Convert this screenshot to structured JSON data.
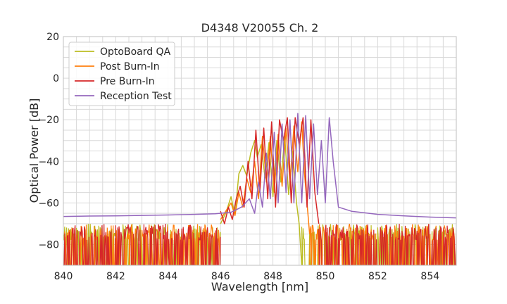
{
  "chart_data": {
    "type": "line",
    "title": "D4348 V20055 Ch. 2",
    "xlabel": "Wavelength [nm]",
    "ylabel": "Optical Power [dB]",
    "xlim": [
      840,
      855
    ],
    "ylim": [
      -90,
      20
    ],
    "xticks": [
      840,
      842,
      844,
      846,
      848,
      850,
      852,
      854
    ],
    "yticks": [
      20,
      0,
      -20,
      -40,
      -60,
      -80
    ],
    "xtick_labels": [
      "840",
      "842",
      "844",
      "846",
      "848",
      "850",
      "852",
      "854"
    ],
    "ytick_labels": [
      "20",
      "0",
      "−20",
      "−40",
      "−60",
      "−80"
    ],
    "grid": true,
    "legend_position": "top-left",
    "series": [
      {
        "name": "OptoBoard QA",
        "color": "#bcbd22",
        "noise_floor": "below -70",
        "x": [
          846.0,
          846.2,
          846.4,
          846.55,
          846.7,
          846.85,
          847.0,
          847.15,
          847.3,
          847.4,
          847.55,
          847.7,
          847.85,
          848.0,
          848.15,
          848.3,
          848.45,
          848.6,
          848.75,
          848.9,
          849.0,
          849.1
        ],
        "y": [
          -70,
          -65,
          -57,
          -66,
          -46,
          -42,
          -47,
          -36,
          -30,
          -38,
          -32,
          -48,
          -31,
          -57,
          -30,
          -50,
          -28,
          -56,
          -35,
          -60,
          -70,
          -90
        ]
      },
      {
        "name": "Post Burn-In",
        "color": "#ff7f0e",
        "noise_floor": "below -70",
        "x": [
          846.0,
          846.2,
          846.4,
          846.55,
          846.7,
          846.85,
          847.0,
          847.15,
          847.3,
          847.45,
          847.6,
          847.75,
          847.9,
          848.05,
          848.2,
          848.35,
          848.5,
          848.65,
          848.8,
          848.95,
          849.1,
          849.2,
          849.3,
          849.4
        ],
        "y": [
          -68,
          -64,
          -60,
          -66,
          -55,
          -62,
          -48,
          -55,
          -40,
          -58,
          -28,
          -50,
          -28,
          -55,
          -27,
          -52,
          -24,
          -50,
          -23,
          -45,
          -21,
          -45,
          -60,
          -75
        ]
      },
      {
        "name": "Pre Burn-In",
        "color": "#d62728",
        "noise_floor": "below -70",
        "x": [
          846.0,
          846.15,
          846.3,
          846.45,
          846.6,
          846.75,
          846.9,
          847.05,
          847.2,
          847.35,
          847.5,
          847.65,
          847.8,
          847.95,
          848.1,
          848.25,
          848.4,
          848.55,
          848.7,
          848.85,
          849.0,
          849.15,
          849.3,
          849.45,
          849.6,
          849.75
        ],
        "y": [
          -64,
          -70,
          -62,
          -68,
          -58,
          -52,
          -62,
          -40,
          -58,
          -25,
          -55,
          -24,
          -58,
          -21,
          -62,
          -20,
          -30,
          -19,
          -60,
          -19,
          -32,
          -19,
          -62,
          -20,
          -55,
          -70
        ]
      },
      {
        "name": "Reception Test",
        "color": "#9467bd",
        "x": [
          840.0,
          841.0,
          842.0,
          843.0,
          844.0,
          845.0,
          845.8,
          846.4,
          846.8,
          847.1,
          847.3,
          847.45,
          847.6,
          847.75,
          847.9,
          848.05,
          848.2,
          848.35,
          848.5,
          848.65,
          848.8,
          848.95,
          849.1,
          849.25,
          849.4,
          849.55,
          849.7,
          849.85,
          850.0,
          850.15,
          850.3,
          850.5,
          851.0,
          852.0,
          853.0,
          854.0,
          855.0
        ],
        "y": [
          -66.5,
          -66.3,
          -66.2,
          -66,
          -65.8,
          -65.5,
          -65.2,
          -64.5,
          -62,
          -58,
          -65,
          -50,
          -62,
          -36,
          -58,
          -26,
          -60,
          -22,
          -55,
          -20,
          -60,
          -17,
          -60,
          -18,
          -58,
          -22,
          -56,
          -30,
          -60,
          -19,
          -40,
          -62,
          -64,
          -65.5,
          -66.2,
          -66.8,
          -67.2
        ]
      }
    ]
  }
}
